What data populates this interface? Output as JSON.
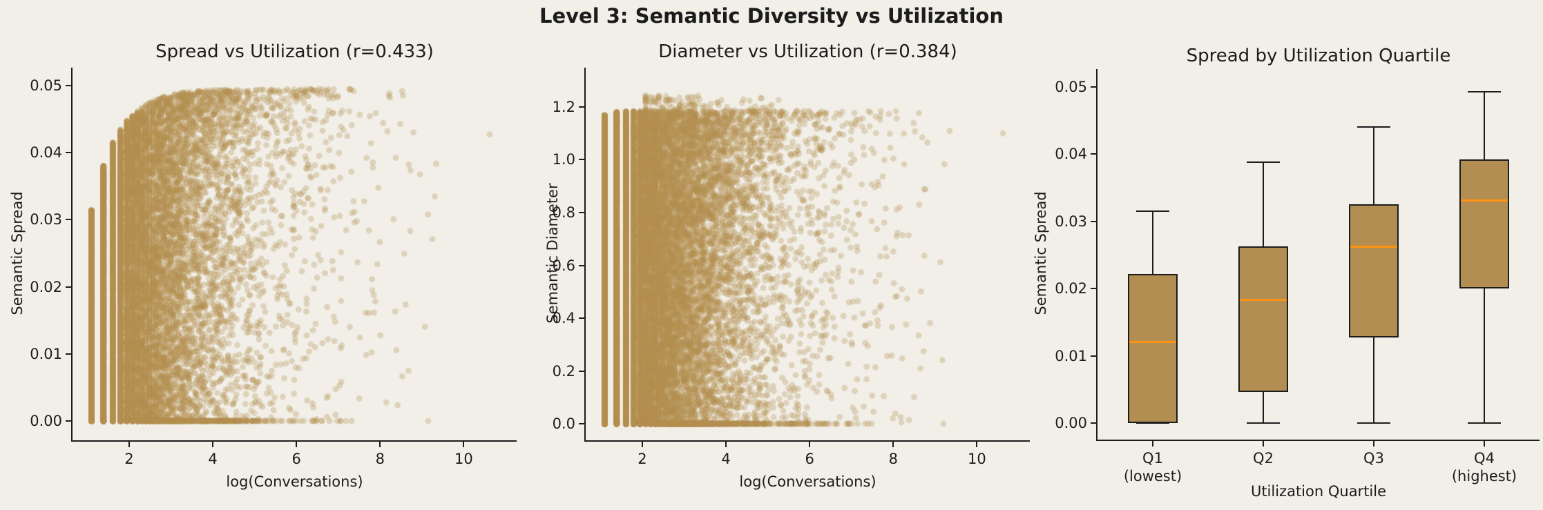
{
  "figure": {
    "title": "Level 3: Semantic Diversity vs Utilization",
    "background": "#f1efe8",
    "text_color": "#1c1c1c"
  },
  "style": {
    "point_color": "#b3904f",
    "point_alpha": 0.3,
    "point_radius": 4.4,
    "box_fill": "#b28e52",
    "box_edge": "#1c1c1c",
    "median_color": "#ff9213",
    "axis_color": "#1c1c1c"
  },
  "chart_data": [
    {
      "type": "scatter",
      "title": "Spread vs Utilization (r=0.433)",
      "r": 0.433,
      "xlabel": "log(Conversations)",
      "ylabel": "Semantic Spread",
      "xlim": [
        0.646,
        11.266
      ],
      "ylim": [
        -0.00288,
        0.05268
      ],
      "xticks": [
        2,
        4,
        6,
        8,
        10
      ],
      "xtick_labels": [
        "2",
        "4",
        "6",
        "8",
        "10"
      ],
      "yticks": [
        0,
        0.01,
        0.02,
        0.03,
        0.04,
        0.05
      ],
      "ytick_labels": [
        "0.00",
        "0.01",
        "0.02",
        "0.03",
        "0.04",
        "0.05"
      ],
      "grid": false,
      "gen": {
        "seed": 42,
        "n_points": 20000,
        "n_min": 3,
        "pareto_exp": 1.111,
        "x_max": 9.35,
        "envelope": {
          "scale": 0.0495,
          "k": 1.59,
          "x0": 0.465
        },
        "top_bias": 0.25,
        "top_bias_start": 2.5,
        "top_bias_xcap": 6,
        "zero_frac": 0.09,
        "zero_xmax": 7.3,
        "fuzz_prob": 0,
        "top_fuzz": 0,
        "fuzz_xmin": 0,
        "fuzz_xmax": 0,
        "extra_zero_x": [
          7.05,
          7.32,
          9.15
        ],
        "outliers": [
          [
            10.62,
            0.0427
          ]
        ]
      }
    },
    {
      "type": "scatter",
      "title": "Diameter vs Utilization (r=0.384)",
      "r": 0.384,
      "xlabel": "log(Conversations)",
      "ylabel": "Semantic Diameter",
      "xlim": [
        0.646,
        11.266
      ],
      "ylim": [
        -0.0627,
        1.349
      ],
      "xticks": [
        2,
        4,
        6,
        8,
        10
      ],
      "xtick_labels": [
        "2",
        "4",
        "6",
        "8",
        "10"
      ],
      "yticks": [
        0,
        0.2,
        0.4,
        0.6,
        0.8,
        1.0,
        1.2
      ],
      "ytick_labels": [
        "0.0",
        "0.2",
        "0.4",
        "0.6",
        "0.8",
        "1.0",
        "1.2"
      ],
      "grid": false,
      "gen": {
        "seed": 7,
        "n_points": 26000,
        "n_min": 3,
        "pareto_exp": 1.111,
        "x_max": 9.35,
        "envelope": {
          "scale": 1.185,
          "k": 4.8,
          "x0": 0.2
        },
        "top_bias": 0.18,
        "top_bias_start": 2.5,
        "top_bias_xcap": 6,
        "zero_frac": 0.09,
        "zero_xmax": 7.5,
        "fuzz_prob": 0.012,
        "top_fuzz": 0.06,
        "fuzz_xmin": 2,
        "fuzz_xmax": 5.5,
        "extra_zero_x": [
          9.2
        ],
        "outliers": [
          [
            10.62,
            1.1
          ]
        ]
      }
    },
    {
      "type": "box",
      "title": "Spread by Utilization Quartile",
      "xlabel": "Utilization Quartile",
      "ylabel": "Semantic Spread",
      "xlim": [
        0,
        4
      ],
      "ylim": [
        -0.00246,
        0.05262
      ],
      "yticks": [
        0,
        0.01,
        0.02,
        0.03,
        0.04,
        0.05
      ],
      "ytick_labels": [
        "0.00",
        "0.01",
        "0.02",
        "0.03",
        "0.04",
        "0.05"
      ],
      "categories": [
        {
          "line1": "Q1",
          "line2": "(lowest)"
        },
        {
          "line1": "Q2",
          "line2": ""
        },
        {
          "line1": "Q3",
          "line2": ""
        },
        {
          "line1": "Q4",
          "line2": "(highest)"
        }
      ],
      "boxes": [
        {
          "whisker_low": 0.0,
          "q1": 0.0,
          "median": 0.0121,
          "q3": 0.0222,
          "whisker_high": 0.0315
        },
        {
          "whisker_low": 0.0,
          "q1": 0.0046,
          "median": 0.0183,
          "q3": 0.0263,
          "whisker_high": 0.0388
        },
        {
          "whisker_low": 0.0,
          "q1": 0.0127,
          "median": 0.0262,
          "q3": 0.0325,
          "whisker_high": 0.044
        },
        {
          "whisker_low": 0.0,
          "q1": 0.02,
          "median": 0.0331,
          "q3": 0.0392,
          "whisker_high": 0.0492
        }
      ],
      "box_width_frac": 0.45,
      "cap_width": 48
    }
  ]
}
